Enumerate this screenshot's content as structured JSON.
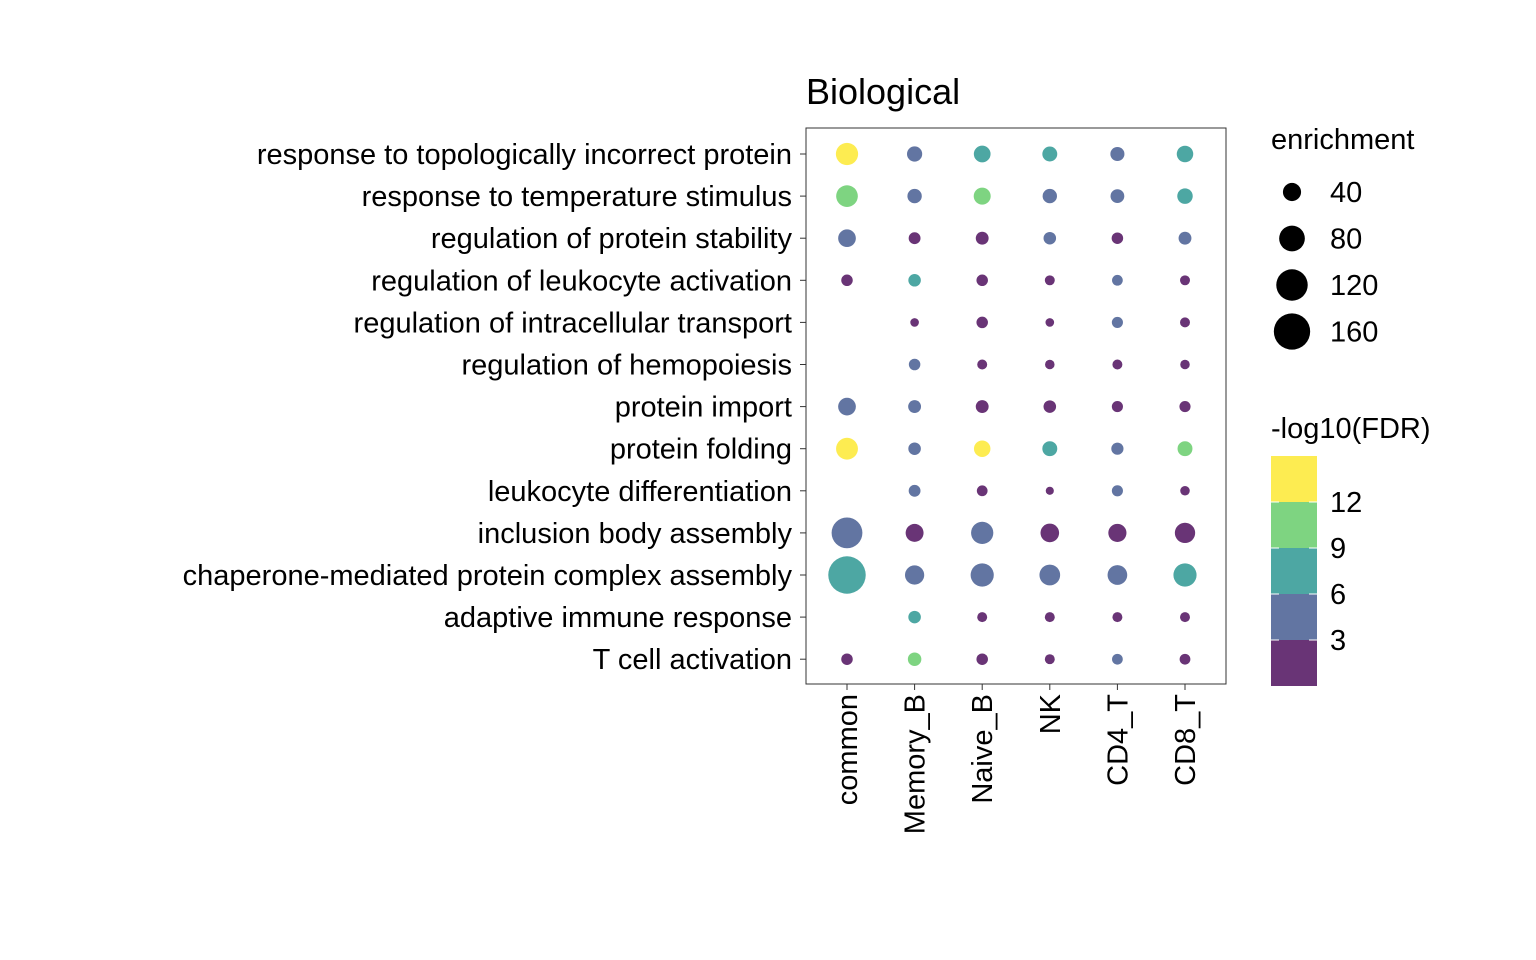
{
  "chart_data": {
    "type": "scatter",
    "title": "Biological",
    "xlabel": "",
    "ylabel": "",
    "categories": [
      "common",
      "Memory_B",
      "Naive_B",
      "NK",
      "CD4_T",
      "CD8_T"
    ],
    "terms": [
      "response to topologically incorrect protein",
      "response to temperature stimulus",
      "regulation of protein stability",
      "regulation of leukocyte activation",
      "regulation of intracellular transport",
      "regulation of hemopoiesis",
      "protein import",
      "protein folding",
      "leukocyte differentiation",
      "inclusion body assembly",
      "chaperone-mediated protein complex assembly",
      "adaptive immune response",
      "T cell activation"
    ],
    "points": [
      {
        "term": "response to topologically incorrect protein",
        "category": "common",
        "enrichment": 60,
        "fdr": 14
      },
      {
        "term": "response to topologically incorrect protein",
        "category": "Memory_B",
        "enrichment": 28,
        "fdr": 4
      },
      {
        "term": "response to topologically incorrect protein",
        "category": "Naive_B",
        "enrichment": 34,
        "fdr": 6.5
      },
      {
        "term": "response to topologically incorrect protein",
        "category": "NK",
        "enrichment": 27,
        "fdr": 6.5
      },
      {
        "term": "response to topologically incorrect protein",
        "category": "CD4_T",
        "enrichment": 24,
        "fdr": 4
      },
      {
        "term": "response to topologically incorrect protein",
        "category": "CD8_T",
        "enrichment": 33,
        "fdr": 6.5
      },
      {
        "term": "response to temperature stimulus",
        "category": "common",
        "enrichment": 57,
        "fdr": 10.5
      },
      {
        "term": "response to temperature stimulus",
        "category": "Memory_B",
        "enrichment": 25,
        "fdr": 4
      },
      {
        "term": "response to temperature stimulus",
        "category": "Naive_B",
        "enrichment": 35,
        "fdr": 10.5
      },
      {
        "term": "response to temperature stimulus",
        "category": "NK",
        "enrichment": 25,
        "fdr": 4
      },
      {
        "term": "response to temperature stimulus",
        "category": "CD4_T",
        "enrichment": 23,
        "fdr": 4
      },
      {
        "term": "response to temperature stimulus",
        "category": "CD8_T",
        "enrichment": 29,
        "fdr": 6.5
      },
      {
        "term": "regulation of protein stability",
        "category": "common",
        "enrichment": 38,
        "fdr": 4
      },
      {
        "term": "regulation of protein stability",
        "category": "Memory_B",
        "enrichment": 17,
        "fdr": 1
      },
      {
        "term": "regulation of protein stability",
        "category": "Naive_B",
        "enrichment": 20,
        "fdr": 1
      },
      {
        "term": "regulation of protein stability",
        "category": "NK",
        "enrichment": 19,
        "fdr": 4
      },
      {
        "term": "regulation of protein stability",
        "category": "CD4_T",
        "enrichment": 16,
        "fdr": 1
      },
      {
        "term": "regulation of protein stability",
        "category": "CD8_T",
        "enrichment": 20,
        "fdr": 4
      },
      {
        "term": "regulation of leukocyte activation",
        "category": "common",
        "enrichment": 16,
        "fdr": 1
      },
      {
        "term": "regulation of leukocyte activation",
        "category": "Memory_B",
        "enrichment": 19,
        "fdr": 6.5
      },
      {
        "term": "regulation of leukocyte activation",
        "category": "Naive_B",
        "enrichment": 16,
        "fdr": 1
      },
      {
        "term": "regulation of leukocyte activation",
        "category": "NK",
        "enrichment": 12,
        "fdr": 1
      },
      {
        "term": "regulation of leukocyte activation",
        "category": "CD4_T",
        "enrichment": 14,
        "fdr": 4
      },
      {
        "term": "regulation of leukocyte activation",
        "category": "CD8_T",
        "enrichment": 12,
        "fdr": 1
      },
      {
        "term": "regulation of intracellular transport",
        "category": "Memory_B",
        "enrichment": 9,
        "fdr": 1
      },
      {
        "term": "regulation of intracellular transport",
        "category": "Naive_B",
        "enrichment": 16,
        "fdr": 1
      },
      {
        "term": "regulation of intracellular transport",
        "category": "NK",
        "enrichment": 9,
        "fdr": 1
      },
      {
        "term": "regulation of intracellular transport",
        "category": "CD4_T",
        "enrichment": 15,
        "fdr": 4
      },
      {
        "term": "regulation of intracellular transport",
        "category": "CD8_T",
        "enrichment": 12,
        "fdr": 1
      },
      {
        "term": "regulation of hemopoiesis",
        "category": "Memory_B",
        "enrichment": 16,
        "fdr": 4
      },
      {
        "term": "regulation of hemopoiesis",
        "category": "Naive_B",
        "enrichment": 12,
        "fdr": 1
      },
      {
        "term": "regulation of hemopoiesis",
        "category": "NK",
        "enrichment": 11,
        "fdr": 1
      },
      {
        "term": "regulation of hemopoiesis",
        "category": "CD4_T",
        "enrichment": 12,
        "fdr": 1
      },
      {
        "term": "regulation of hemopoiesis",
        "category": "CD8_T",
        "enrichment": 11,
        "fdr": 1
      },
      {
        "term": "protein import",
        "category": "common",
        "enrichment": 38,
        "fdr": 4
      },
      {
        "term": "protein import",
        "category": "Memory_B",
        "enrichment": 20,
        "fdr": 4
      },
      {
        "term": "protein import",
        "category": "Naive_B",
        "enrichment": 20,
        "fdr": 1
      },
      {
        "term": "protein import",
        "category": "NK",
        "enrichment": 19,
        "fdr": 1
      },
      {
        "term": "protein import",
        "category": "CD4_T",
        "enrichment": 15,
        "fdr": 1
      },
      {
        "term": "protein import",
        "category": "CD8_T",
        "enrichment": 15,
        "fdr": 1
      },
      {
        "term": "protein folding",
        "category": "common",
        "enrichment": 58,
        "fdr": 14
      },
      {
        "term": "protein folding",
        "category": "Memory_B",
        "enrichment": 19,
        "fdr": 4
      },
      {
        "term": "protein folding",
        "category": "Naive_B",
        "enrichment": 33,
        "fdr": 14
      },
      {
        "term": "protein folding",
        "category": "NK",
        "enrichment": 27,
        "fdr": 6.5
      },
      {
        "term": "protein folding",
        "category": "CD4_T",
        "enrichment": 18,
        "fdr": 4
      },
      {
        "term": "protein folding",
        "category": "CD8_T",
        "enrichment": 27,
        "fdr": 10.5
      },
      {
        "term": "leukocyte differentiation",
        "category": "Memory_B",
        "enrichment": 17,
        "fdr": 4
      },
      {
        "term": "leukocyte differentiation",
        "category": "Naive_B",
        "enrichment": 14,
        "fdr": 1
      },
      {
        "term": "leukocyte differentiation",
        "category": "NK",
        "enrichment": 8,
        "fdr": 1
      },
      {
        "term": "leukocyte differentiation",
        "category": "CD4_T",
        "enrichment": 15,
        "fdr": 4
      },
      {
        "term": "leukocyte differentiation",
        "category": "CD8_T",
        "enrichment": 11,
        "fdr": 1
      },
      {
        "term": "inclusion body assembly",
        "category": "common",
        "enrichment": 115,
        "fdr": 4
      },
      {
        "term": "inclusion body assembly",
        "category": "Memory_B",
        "enrichment": 39,
        "fdr": 1
      },
      {
        "term": "inclusion body assembly",
        "category": "Naive_B",
        "enrichment": 60,
        "fdr": 4
      },
      {
        "term": "inclusion body assembly",
        "category": "NK",
        "enrichment": 42,
        "fdr": 1
      },
      {
        "term": "inclusion body assembly",
        "category": "CD4_T",
        "enrichment": 40,
        "fdr": 1
      },
      {
        "term": "inclusion body assembly",
        "category": "CD8_T",
        "enrichment": 50,
        "fdr": 1
      },
      {
        "term": "chaperone-mediated protein complex assembly",
        "category": "common",
        "enrichment": 170,
        "fdr": 6.5
      },
      {
        "term": "chaperone-mediated protein complex assembly",
        "category": "Memory_B",
        "enrichment": 45,
        "fdr": 4
      },
      {
        "term": "chaperone-mediated protein complex assembly",
        "category": "Naive_B",
        "enrichment": 65,
        "fdr": 4
      },
      {
        "term": "chaperone-mediated protein complex assembly",
        "category": "NK",
        "enrichment": 52,
        "fdr": 4
      },
      {
        "term": "chaperone-mediated protein complex assembly",
        "category": "CD4_T",
        "enrichment": 47,
        "fdr": 4
      },
      {
        "term": "chaperone-mediated protein complex assembly",
        "category": "CD8_T",
        "enrichment": 65,
        "fdr": 6.5
      },
      {
        "term": "adaptive immune response",
        "category": "Memory_B",
        "enrichment": 19,
        "fdr": 6.5
      },
      {
        "term": "adaptive immune response",
        "category": "Naive_B",
        "enrichment": 12,
        "fdr": 1
      },
      {
        "term": "adaptive immune response",
        "category": "NK",
        "enrichment": 12,
        "fdr": 1
      },
      {
        "term": "adaptive immune response",
        "category": "CD4_T",
        "enrichment": 12,
        "fdr": 1
      },
      {
        "term": "adaptive immune response",
        "category": "CD8_T",
        "enrichment": 12,
        "fdr": 1
      },
      {
        "term": "T cell activation",
        "category": "common",
        "enrichment": 16,
        "fdr": 1
      },
      {
        "term": "T cell activation",
        "category": "Memory_B",
        "enrichment": 22,
        "fdr": 10.5
      },
      {
        "term": "T cell activation",
        "category": "Naive_B",
        "enrichment": 16,
        "fdr": 1
      },
      {
        "term": "T cell activation",
        "category": "NK",
        "enrichment": 12,
        "fdr": 1
      },
      {
        "term": "T cell activation",
        "category": "CD4_T",
        "enrichment": 14,
        "fdr": 4
      },
      {
        "term": "T cell activation",
        "category": "CD8_T",
        "enrichment": 14,
        "fdr": 1
      }
    ],
    "size_legend": {
      "title": "enrichment",
      "values": [
        40,
        80,
        120,
        160
      ],
      "labels": [
        "40",
        "80",
        "120",
        "160"
      ]
    },
    "color_legend": {
      "title": "-log10(FDR)",
      "range": [
        0,
        15
      ],
      "bins": [
        {
          "min": 0,
          "max": 3,
          "color": "#440154"
        },
        {
          "min": 3,
          "max": 6,
          "color": "#3b528b"
        },
        {
          "min": 6,
          "max": 9,
          "color": "#21918c"
        },
        {
          "min": 9,
          "max": 12,
          "color": "#5ec962"
        },
        {
          "min": 12,
          "max": 15,
          "color": "#fde725"
        }
      ],
      "tick_values": [
        3,
        6,
        9,
        12
      ],
      "tick_labels": [
        "3",
        "6",
        "9",
        "12"
      ]
    },
    "grid": false,
    "point_opacity": 0.8,
    "legend_position": "right"
  }
}
